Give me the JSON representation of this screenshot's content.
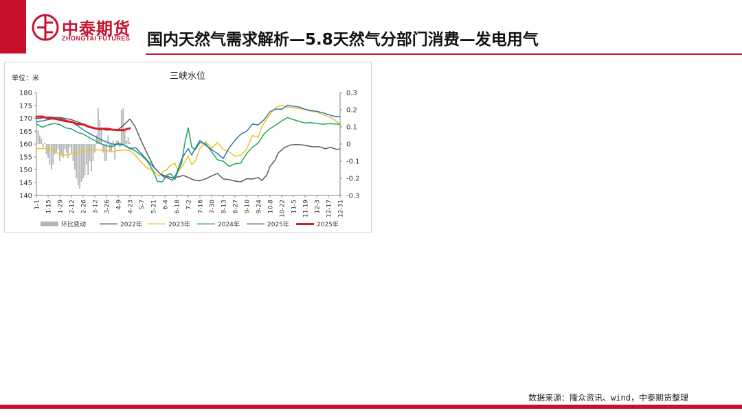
{
  "brand": {
    "name_cn": "中泰期货",
    "name_en": "ZHONGTAI FUTURES"
  },
  "page": {
    "title": "国内天然气需求解析—5.8天然气分部门消费—发电用气",
    "source": "数据来源：隆众资讯、wind，中泰期货整理"
  },
  "colors": {
    "brand_red": "#c8102e"
  },
  "chart_data": {
    "type": "line",
    "title": "三峡水位",
    "unit_label": "单位：米",
    "ylim": [
      140,
      180
    ],
    "y_ticks": [
      140,
      145,
      150,
      155,
      160,
      165,
      170,
      175,
      180
    ],
    "y2lim": [
      -0.3,
      0.3
    ],
    "y2_ticks": [
      "-0.3",
      "-0.2",
      "-0.1",
      "0",
      "0.1",
      "0.2",
      "0.3"
    ],
    "x_ticks": [
      "1-1",
      "1-15",
      "1-29",
      "2-12",
      "2-26",
      "3-12",
      "3-26",
      "4-9",
      "4-23",
      "5-7",
      "5-21",
      "6-4",
      "6-18",
      "7-2",
      "7-16",
      "7-30",
      "8-13",
      "8-27",
      "9-10",
      "9-24",
      "10-8",
      "10-22",
      "11-5",
      "11-19",
      "12-3",
      "12-17",
      "12-31"
    ],
    "x_range_days": [
      0,
      364
    ],
    "legend_position": "bottom",
    "series": [
      {
        "name": "2022年",
        "color": "#595959",
        "axis": "left",
        "width": 1.5,
        "points": [
          [
            0,
            169.8
          ],
          [
            14,
            170.5
          ],
          [
            28,
            170.3
          ],
          [
            42,
            169.5
          ],
          [
            56,
            167.8
          ],
          [
            70,
            166.2
          ],
          [
            84,
            165.4
          ],
          [
            98,
            165.6
          ],
          [
            105,
            167.5
          ],
          [
            112,
            169.7
          ],
          [
            118,
            167
          ],
          [
            126,
            161
          ],
          [
            134,
            155.5
          ],
          [
            141,
            151
          ],
          [
            148,
            148.5
          ],
          [
            155,
            147.5
          ],
          [
            162,
            147
          ],
          [
            170,
            147.2
          ],
          [
            176,
            147.8
          ],
          [
            182,
            147
          ],
          [
            189,
            146
          ],
          [
            196,
            145.7
          ],
          [
            203,
            146.5
          ],
          [
            210,
            147.6
          ],
          [
            217,
            148.6
          ],
          [
            224,
            146.4
          ],
          [
            231,
            146.2
          ],
          [
            238,
            145.6
          ],
          [
            245,
            145.3
          ],
          [
            252,
            146.5
          ],
          [
            259,
            146.4
          ],
          [
            266,
            147
          ],
          [
            270,
            145.8
          ],
          [
            276,
            147.8
          ],
          [
            280,
            151.3
          ],
          [
            286,
            153.7
          ],
          [
            290,
            156.6
          ],
          [
            297,
            158.5
          ],
          [
            304,
            159.6
          ],
          [
            311,
            159.8
          ],
          [
            318,
            159.7
          ],
          [
            325,
            159.3
          ],
          [
            332,
            158.9
          ],
          [
            339,
            159
          ],
          [
            346,
            158.2
          ],
          [
            353,
            158.7
          ],
          [
            360,
            157.9
          ],
          [
            364,
            158.1
          ]
        ]
      },
      {
        "name": "2023年",
        "color": "#f0c419",
        "axis": "left",
        "width": 1.5,
        "points": [
          [
            0,
            158.2
          ],
          [
            14,
            158.3
          ],
          [
            21,
            157.5
          ],
          [
            28,
            155.8
          ],
          [
            35,
            155.7
          ],
          [
            42,
            156.1
          ],
          [
            49,
            156.7
          ],
          [
            56,
            157.1
          ],
          [
            63,
            157.6
          ],
          [
            70,
            158
          ],
          [
            77,
            157.6
          ],
          [
            84,
            157.4
          ],
          [
            91,
            157.1
          ],
          [
            98,
            157.5
          ],
          [
            105,
            157.7
          ],
          [
            112,
            157.5
          ],
          [
            119,
            155.5
          ],
          [
            126,
            152.8
          ],
          [
            133,
            150.7
          ],
          [
            140,
            149.5
          ],
          [
            147,
            147.5
          ],
          [
            152,
            149.4
          ],
          [
            156,
            150
          ],
          [
            160,
            151.6
          ],
          [
            166,
            152.6
          ],
          [
            170,
            149.3
          ],
          [
            176,
            151.8
          ],
          [
            182,
            155.5
          ],
          [
            186,
            152
          ],
          [
            190,
            153
          ],
          [
            196,
            158.3
          ],
          [
            203,
            161
          ],
          [
            210,
            158.3
          ],
          [
            217,
            160.6
          ],
          [
            224,
            157.9
          ],
          [
            231,
            157
          ],
          [
            238,
            155.2
          ],
          [
            245,
            155.6
          ],
          [
            252,
            158
          ],
          [
            259,
            163.3
          ],
          [
            266,
            162.6
          ],
          [
            270,
            166.5
          ],
          [
            273,
            168.2
          ],
          [
            280,
            171.5
          ],
          [
            287,
            174.2
          ],
          [
            294,
            175.1
          ],
          [
            301,
            174.3
          ],
          [
            308,
            174.2
          ],
          [
            315,
            173.8
          ],
          [
            322,
            173.4
          ],
          [
            329,
            172.7
          ],
          [
            336,
            172.5
          ],
          [
            343,
            171.5
          ],
          [
            350,
            170.7
          ],
          [
            357,
            169.5
          ],
          [
            364,
            167.6
          ]
        ]
      },
      {
        "name": "2024年",
        "color": "#1aa757",
        "axis": "left",
        "width": 1.5,
        "points": [
          [
            0,
            167.8
          ],
          [
            7,
            166.5
          ],
          [
            14,
            167.4
          ],
          [
            21,
            168
          ],
          [
            28,
            167.6
          ],
          [
            35,
            166.3
          ],
          [
            42,
            165.9
          ],
          [
            49,
            164.6
          ],
          [
            56,
            163.9
          ],
          [
            63,
            162.6
          ],
          [
            70,
            161.3
          ],
          [
            77,
            160.1
          ],
          [
            84,
            159.3
          ],
          [
            91,
            159
          ],
          [
            98,
            160.3
          ],
          [
            105,
            159.7
          ],
          [
            112,
            158.4
          ],
          [
            119,
            157.2
          ],
          [
            126,
            155.6
          ],
          [
            133,
            153.3
          ],
          [
            140,
            149.5
          ],
          [
            145,
            145.5
          ],
          [
            151,
            145.3
          ],
          [
            156,
            147.8
          ],
          [
            161,
            148.5
          ],
          [
            166,
            146.2
          ],
          [
            170,
            149.7
          ],
          [
            174,
            152.5
          ],
          [
            178,
            160.5
          ],
          [
            182,
            166.3
          ],
          [
            186,
            159
          ],
          [
            190,
            157.7
          ],
          [
            196,
            160.6
          ],
          [
            203,
            160.1
          ],
          [
            210,
            157
          ],
          [
            217,
            153.9
          ],
          [
            224,
            153.3
          ],
          [
            231,
            151.3
          ],
          [
            238,
            152.3
          ],
          [
            245,
            152.6
          ],
          [
            252,
            156.3
          ],
          [
            259,
            158.8
          ],
          [
            266,
            160.4
          ],
          [
            273,
            164
          ],
          [
            280,
            166
          ],
          [
            287,
            167.4
          ],
          [
            294,
            169
          ],
          [
            301,
            170.3
          ],
          [
            308,
            169.5
          ],
          [
            315,
            168.8
          ],
          [
            322,
            168.2
          ],
          [
            329,
            168.3
          ],
          [
            336,
            168
          ],
          [
            343,
            167.7
          ],
          [
            350,
            167.9
          ],
          [
            357,
            167.8
          ],
          [
            364,
            167.7
          ]
        ]
      },
      {
        "name": "2025年",
        "color": "#2e75b6",
        "axis": "left",
        "width": 1.5,
        "points": [
          [
            0,
            168.6
          ],
          [
            7,
            169
          ],
          [
            14,
            169.5
          ],
          [
            21,
            169.8
          ],
          [
            28,
            169.9
          ],
          [
            35,
            169.3
          ],
          [
            42,
            168.6
          ],
          [
            49,
            167.2
          ],
          [
            56,
            165.6
          ],
          [
            63,
            164.2
          ],
          [
            70,
            163
          ],
          [
            77,
            161.7
          ],
          [
            84,
            160.8
          ],
          [
            91,
            160
          ],
          [
            98,
            159.8
          ],
          [
            105,
            159.6
          ],
          [
            112,
            158.2
          ],
          [
            119,
            158.6
          ],
          [
            126,
            156.2
          ],
          [
            133,
            153.6
          ],
          [
            140,
            151.2
          ],
          [
            147,
            148.8
          ],
          [
            152,
            147.3
          ],
          [
            157,
            146.9
          ],
          [
            163,
            145.9
          ],
          [
            168,
            148.6
          ],
          [
            174,
            154
          ],
          [
            178,
            156.3
          ],
          [
            182,
            158.3
          ],
          [
            186,
            155.7
          ],
          [
            190,
            158.1
          ],
          [
            196,
            161.4
          ],
          [
            203,
            159.5
          ],
          [
            210,
            157.8
          ],
          [
            217,
            156.3
          ],
          [
            224,
            154.4
          ],
          [
            231,
            158.5
          ],
          [
            238,
            161.4
          ],
          [
            245,
            163.8
          ],
          [
            252,
            165
          ],
          [
            259,
            167.8
          ],
          [
            266,
            167.4
          ],
          [
            273,
            169.5
          ],
          [
            280,
            172.6
          ],
          [
            287,
            173.6
          ],
          [
            294,
            173.5
          ],
          [
            301,
            175.1
          ],
          [
            308,
            174.7
          ],
          [
            315,
            174.4
          ],
          [
            322,
            173.5
          ],
          [
            329,
            173.1
          ],
          [
            336,
            172.7
          ],
          [
            343,
            172.2
          ],
          [
            350,
            171.4
          ],
          [
            357,
            170.8
          ],
          [
            364,
            170.6
          ]
        ]
      },
      {
        "name": "2025年",
        "color": "#e0181e",
        "axis": "left",
        "width": 3,
        "points": [
          [
            0,
            170.6
          ],
          [
            7,
            170.7
          ],
          [
            14,
            170
          ],
          [
            21,
            169.9
          ],
          [
            28,
            169.4
          ],
          [
            35,
            168.9
          ],
          [
            42,
            168.6
          ],
          [
            49,
            167.8
          ],
          [
            56,
            167.6
          ],
          [
            63,
            166.7
          ],
          [
            70,
            166.1
          ],
          [
            77,
            165.8
          ],
          [
            84,
            166
          ],
          [
            91,
            165.6
          ],
          [
            98,
            165.4
          ],
          [
            105,
            165.4
          ],
          [
            108,
            165.8
          ],
          [
            112,
            166.1
          ]
        ]
      },
      {
        "name": "环比变动",
        "color": "#b4b4b4",
        "axis": "right",
        "type": "bar",
        "points": [
          [
            2,
            0.08
          ],
          [
            4,
            0.05
          ],
          [
            6,
            0.03
          ],
          [
            8,
            -0.02
          ],
          [
            10,
            0.01
          ],
          [
            12,
            -0.06
          ],
          [
            14,
            -0.08
          ],
          [
            16,
            -0.12
          ],
          [
            18,
            -0.15
          ],
          [
            20,
            -0.12
          ],
          [
            22,
            -0.06
          ],
          [
            24,
            -0.05
          ],
          [
            26,
            -0.03
          ],
          [
            28,
            -0.1
          ],
          [
            30,
            -0.06
          ],
          [
            32,
            -0.08
          ],
          [
            34,
            -0.03
          ],
          [
            36,
            -0.05
          ],
          [
            38,
            -0.08
          ],
          [
            40,
            -0.02
          ],
          [
            42,
            -0.06
          ],
          [
            44,
            -0.1
          ],
          [
            46,
            -0.15
          ],
          [
            48,
            -0.2
          ],
          [
            50,
            -0.24
          ],
          [
            52,
            -0.26
          ],
          [
            54,
            -0.22
          ],
          [
            56,
            -0.2
          ],
          [
            58,
            -0.18
          ],
          [
            60,
            -0.12
          ],
          [
            62,
            -0.18
          ],
          [
            64,
            -0.1
          ],
          [
            66,
            -0.16
          ],
          [
            68,
            -0.1
          ],
          [
            70,
            -0.05
          ],
          [
            72,
            0.05
          ],
          [
            74,
            0.21
          ],
          [
            76,
            0.14
          ],
          [
            78,
            0.1
          ],
          [
            80,
            -0.05
          ],
          [
            82,
            -0.1
          ],
          [
            84,
            -0.1
          ],
          [
            86,
            0.05
          ],
          [
            88,
            -0.05
          ],
          [
            90,
            -0.04
          ],
          [
            92,
            0.02
          ],
          [
            94,
            -0.09
          ],
          [
            96,
            0.02
          ],
          [
            98,
            0.02
          ],
          [
            100,
            -0.02
          ],
          [
            102,
            0.2
          ],
          [
            104,
            0.21
          ],
          [
            106,
            0.08
          ],
          [
            108,
            0.02
          ],
          [
            110,
            0.04
          ],
          [
            112,
            0.01
          ]
        ]
      }
    ]
  }
}
